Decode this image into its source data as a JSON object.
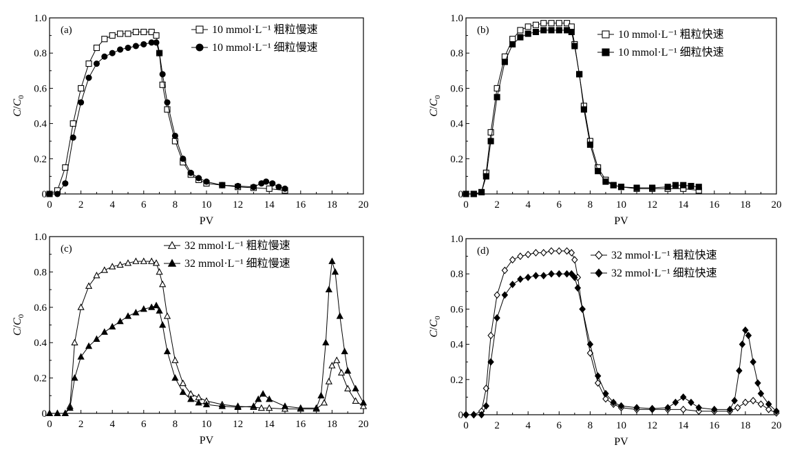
{
  "chart_data": [
    {
      "type": "scatter",
      "panel_label": "(a)",
      "xlabel": "PV",
      "ylabel_main": "C",
      "ylabel_slash": "/",
      "ylabel_base": "C",
      "ylabel_sub": "0",
      "xlim": [
        0,
        20
      ],
      "ylim": [
        0,
        1.0
      ],
      "xticks": [
        "0",
        "2",
        "4",
        "6",
        "8",
        "10",
        "12",
        "14",
        "16",
        "18",
        "20"
      ],
      "yticks": [
        "0",
        "0.2",
        "0.4",
        "0.6",
        "0.8",
        "1.0"
      ],
      "legend_position": "top-right",
      "series": [
        {
          "name": "10 mmol·L⁻¹ 粗粒慢速",
          "marker": "open-square",
          "x": [
            0,
            0.5,
            1.0,
            1.5,
            2.0,
            2.5,
            3.0,
            3.5,
            4.0,
            4.5,
            5.0,
            5.5,
            6.0,
            6.5,
            6.8,
            7.0,
            7.2,
            7.5,
            8.0,
            8.5,
            9.0,
            9.5,
            10.0,
            11.0,
            12.0,
            13.0,
            14.0,
            15.0
          ],
          "y": [
            0.0,
            0.02,
            0.15,
            0.4,
            0.6,
            0.74,
            0.83,
            0.88,
            0.9,
            0.91,
            0.91,
            0.92,
            0.92,
            0.92,
            0.9,
            0.8,
            0.62,
            0.48,
            0.3,
            0.18,
            0.11,
            0.08,
            0.06,
            0.05,
            0.04,
            0.035,
            0.03,
            0.02
          ]
        },
        {
          "name": "10 mmol·L⁻¹ 细粒慢速",
          "marker": "filled-circle",
          "x": [
            0,
            0.5,
            1.0,
            1.5,
            2.0,
            2.5,
            3.0,
            3.5,
            4.0,
            4.5,
            5.0,
            5.5,
            6.0,
            6.5,
            6.8,
            7.0,
            7.2,
            7.5,
            8.0,
            8.5,
            9.0,
            9.5,
            10.0,
            11.0,
            12.0,
            13.0,
            13.5,
            13.8,
            14.2,
            14.6,
            15.0
          ],
          "y": [
            0.0,
            0.0,
            0.06,
            0.32,
            0.52,
            0.66,
            0.74,
            0.78,
            0.8,
            0.82,
            0.83,
            0.84,
            0.85,
            0.86,
            0.86,
            0.8,
            0.68,
            0.52,
            0.33,
            0.2,
            0.12,
            0.09,
            0.07,
            0.05,
            0.045,
            0.04,
            0.06,
            0.07,
            0.06,
            0.04,
            0.03
          ]
        }
      ]
    },
    {
      "type": "scatter",
      "panel_label": "(b)",
      "xlabel": "PV",
      "ylabel_main": "C",
      "ylabel_slash": "/",
      "ylabel_base": "C",
      "ylabel_sub": "0",
      "xlim": [
        0,
        20
      ],
      "ylim": [
        0,
        1.0
      ],
      "xticks": [
        "0",
        "2",
        "4",
        "6",
        "8",
        "10",
        "12",
        "14",
        "16",
        "18",
        "20"
      ],
      "yticks": [
        "0",
        "0.2",
        "0.4",
        "0.6",
        "0.8",
        "1.0"
      ],
      "legend_position": "top-right",
      "series": [
        {
          "name": "10 mmol·L⁻¹ 粗粒快速",
          "marker": "open-square",
          "x": [
            0,
            0.5,
            1.0,
            1.3,
            1.6,
            2.0,
            2.5,
            3.0,
            3.5,
            4.0,
            4.5,
            5.0,
            5.5,
            6.0,
            6.5,
            6.8,
            7.0,
            7.3,
            7.6,
            8.0,
            8.5,
            9.0,
            9.5,
            10.0,
            11.0,
            12.0,
            13.0,
            14.0,
            15.0
          ],
          "y": [
            0.0,
            0.0,
            0.01,
            0.12,
            0.35,
            0.6,
            0.78,
            0.88,
            0.93,
            0.95,
            0.96,
            0.97,
            0.97,
            0.97,
            0.97,
            0.95,
            0.85,
            0.68,
            0.5,
            0.3,
            0.15,
            0.08,
            0.05,
            0.04,
            0.03,
            0.03,
            0.03,
            0.03,
            0.02
          ]
        },
        {
          "name": "10 mmol·L⁻¹ 细粒快速",
          "marker": "filled-square",
          "x": [
            0,
            0.5,
            1.0,
            1.3,
            1.6,
            2.0,
            2.5,
            3.0,
            3.5,
            4.0,
            4.5,
            5.0,
            5.5,
            6.0,
            6.5,
            6.8,
            7.0,
            7.3,
            7.6,
            8.0,
            8.5,
            9.0,
            9.5,
            10.0,
            11.0,
            12.0,
            13.0,
            13.5,
            14.0,
            14.5,
            15.0
          ],
          "y": [
            0.0,
            0.0,
            0.01,
            0.1,
            0.3,
            0.55,
            0.75,
            0.85,
            0.89,
            0.91,
            0.92,
            0.93,
            0.93,
            0.93,
            0.93,
            0.92,
            0.84,
            0.68,
            0.48,
            0.28,
            0.13,
            0.07,
            0.05,
            0.04,
            0.035,
            0.035,
            0.04,
            0.05,
            0.05,
            0.045,
            0.04
          ]
        }
      ]
    },
    {
      "type": "scatter",
      "panel_label": "(c)",
      "xlabel": "PV",
      "ylabel_main": "C",
      "ylabel_slash": "/",
      "ylabel_base": "C",
      "ylabel_sub": "0",
      "xlim": [
        0,
        20
      ],
      "ylim": [
        0,
        1.0
      ],
      "xticks": [
        "0",
        "2",
        "4",
        "6",
        "8",
        "10",
        "12",
        "14",
        "16",
        "18",
        "20"
      ],
      "yticks": [
        "0",
        "0.2",
        "0.4",
        "0.6",
        "0.8",
        "1.0"
      ],
      "legend_position": "top-center",
      "series": [
        {
          "name": "32 mmol·L⁻¹ 粗粒慢速",
          "marker": "open-triangle",
          "x": [
            0,
            0.5,
            1.0,
            1.3,
            1.6,
            2.0,
            2.5,
            3.0,
            3.5,
            4.0,
            4.5,
            5.0,
            5.5,
            6.0,
            6.5,
            6.8,
            7.0,
            7.2,
            7.5,
            8.0,
            8.5,
            9.0,
            9.5,
            10.0,
            11.0,
            12.0,
            13.0,
            13.5,
            14.0,
            15.0,
            16.0,
            17.0,
            17.5,
            17.8,
            18.0,
            18.3,
            18.6,
            19.0,
            19.5,
            20.0
          ],
          "y": [
            0.0,
            0.0,
            0.0,
            0.04,
            0.4,
            0.6,
            0.72,
            0.78,
            0.81,
            0.83,
            0.84,
            0.85,
            0.86,
            0.86,
            0.86,
            0.85,
            0.8,
            0.73,
            0.55,
            0.3,
            0.17,
            0.11,
            0.09,
            0.07,
            0.05,
            0.04,
            0.035,
            0.03,
            0.03,
            0.025,
            0.025,
            0.025,
            0.06,
            0.18,
            0.27,
            0.3,
            0.23,
            0.14,
            0.07,
            0.04
          ]
        },
        {
          "name": "32 mmol·L⁻¹ 细粒慢速",
          "marker": "filled-triangle",
          "x": [
            0,
            0.5,
            1.0,
            1.3,
            1.6,
            2.0,
            2.5,
            3.0,
            3.5,
            4.0,
            4.5,
            5.0,
            5.5,
            6.0,
            6.5,
            6.8,
            7.0,
            7.2,
            7.5,
            8.0,
            8.5,
            9.0,
            9.5,
            10.0,
            11.0,
            12.0,
            13.0,
            13.3,
            13.6,
            14.0,
            15.0,
            16.0,
            17.0,
            17.3,
            17.6,
            17.8,
            18.0,
            18.2,
            18.5,
            18.8,
            19.0,
            19.5,
            20.0
          ],
          "y": [
            0.0,
            0.0,
            0.0,
            0.03,
            0.2,
            0.32,
            0.38,
            0.42,
            0.46,
            0.49,
            0.52,
            0.55,
            0.57,
            0.59,
            0.6,
            0.61,
            0.58,
            0.5,
            0.35,
            0.2,
            0.12,
            0.08,
            0.06,
            0.05,
            0.04,
            0.035,
            0.04,
            0.08,
            0.11,
            0.08,
            0.04,
            0.03,
            0.03,
            0.1,
            0.4,
            0.7,
            0.86,
            0.8,
            0.55,
            0.35,
            0.24,
            0.14,
            0.06
          ]
        }
      ]
    },
    {
      "type": "scatter",
      "panel_label": "(d)",
      "xlabel": "PV",
      "ylabel_main": "C",
      "ylabel_slash": "/",
      "ylabel_base": "C",
      "ylabel_sub": "0",
      "xlim": [
        0,
        20
      ],
      "ylim": [
        0,
        1.0
      ],
      "xticks": [
        "0",
        "2",
        "4",
        "6",
        "8",
        "10",
        "12",
        "14",
        "16",
        "18",
        "20"
      ],
      "yticks": [
        "0",
        "0.2",
        "0.4",
        "0.6",
        "0.8",
        "1.0"
      ],
      "legend_position": "top-right",
      "series": [
        {
          "name": "32 mmol·L⁻¹ 粗粒快速",
          "marker": "open-diamond",
          "x": [
            0,
            0.5,
            1.0,
            1.3,
            1.6,
            2.0,
            2.5,
            3.0,
            3.5,
            4.0,
            4.5,
            5.0,
            5.5,
            6.0,
            6.5,
            6.8,
            7.0,
            7.2,
            7.5,
            8.0,
            8.5,
            9.0,
            9.5,
            10.0,
            11.0,
            12.0,
            13.0,
            14.0,
            15.0,
            16.0,
            17.0,
            17.5,
            18.0,
            18.5,
            19.0,
            19.5,
            20.0
          ],
          "y": [
            0.0,
            0.0,
            0.02,
            0.15,
            0.45,
            0.68,
            0.82,
            0.88,
            0.9,
            0.91,
            0.92,
            0.92,
            0.93,
            0.93,
            0.93,
            0.92,
            0.88,
            0.78,
            0.6,
            0.35,
            0.18,
            0.09,
            0.06,
            0.04,
            0.03,
            0.03,
            0.03,
            0.03,
            0.02,
            0.02,
            0.02,
            0.04,
            0.07,
            0.08,
            0.06,
            0.03,
            0.01
          ]
        },
        {
          "name": "32 mmol·L⁻¹ 细粒快速",
          "marker": "filled-diamond",
          "x": [
            0,
            0.5,
            1.0,
            1.3,
            1.6,
            2.0,
            2.5,
            3.0,
            3.5,
            4.0,
            4.5,
            5.0,
            5.5,
            6.0,
            6.5,
            6.8,
            7.0,
            7.2,
            7.5,
            8.0,
            8.5,
            9.0,
            9.5,
            10.0,
            11.0,
            12.0,
            13.0,
            13.5,
            14.0,
            14.5,
            15.0,
            16.0,
            17.0,
            17.3,
            17.6,
            17.8,
            18.0,
            18.2,
            18.5,
            18.8,
            19.0,
            19.5,
            20.0
          ],
          "y": [
            0.0,
            0.0,
            0.0,
            0.05,
            0.3,
            0.55,
            0.68,
            0.74,
            0.77,
            0.78,
            0.79,
            0.79,
            0.8,
            0.8,
            0.8,
            0.8,
            0.78,
            0.72,
            0.6,
            0.4,
            0.22,
            0.12,
            0.07,
            0.05,
            0.04,
            0.035,
            0.04,
            0.07,
            0.1,
            0.07,
            0.04,
            0.03,
            0.03,
            0.08,
            0.25,
            0.4,
            0.48,
            0.45,
            0.3,
            0.18,
            0.12,
            0.06,
            0.02
          ]
        }
      ]
    }
  ]
}
